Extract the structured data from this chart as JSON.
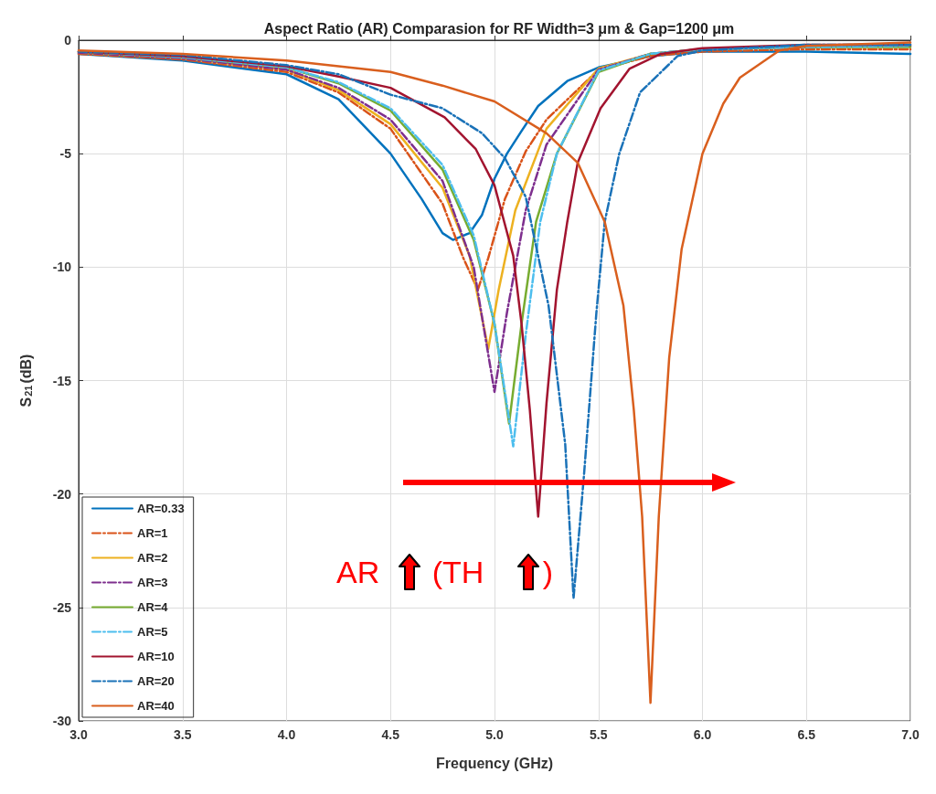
{
  "chart_data": {
    "type": "line",
    "title": "Aspect Ratio (AR) Comparasion for RF Width=3 μm & Gap=1200 μm",
    "xlabel": "Frequency (GHz)",
    "ylabel": "S$_{21}$(dB)",
    "xlim": [
      3,
      7
    ],
    "xticks": [
      {
        "value": 3,
        "label": "3.0"
      },
      3.5,
      {
        "value": 4,
        "label": "4.0"
      },
      4.5,
      {
        "value": 5,
        "label": "5.0"
      },
      5.5,
      {
        "value": 6,
        "label": "6.0"
      },
      6.5,
      {
        "value": 7,
        "label": "7.0"
      }
    ],
    "ylim": [
      -30,
      0
    ],
    "yticks": [
      -30,
      -25,
      -20,
      -15,
      -10,
      -5,
      0
    ],
    "grid": true,
    "legend": "bottom left",
    "marker": "none",
    "annotations": [
      "AR",
      "(TH",
      ")"
    ],
    "series": [
      {
        "name": "AR=0.33",
        "color": "#0072bd",
        "line_style": "solid",
        "x": [
          3.0,
          3.5,
          4.0,
          4.25,
          4.5,
          4.65,
          4.75,
          4.8,
          4.88,
          4.94,
          5.0,
          5.06,
          5.13,
          5.21,
          5.35,
          5.5,
          5.75,
          6.0,
          6.5,
          7.0
        ],
        "values": [
          -0.6,
          -0.9,
          -1.5,
          -2.6,
          -5.0,
          -7.0,
          -8.5,
          -8.8,
          -8.5,
          -7.7,
          -6.1,
          -5.0,
          -4.0,
          -2.9,
          -1.8,
          -1.2,
          -0.7,
          -0.5,
          -0.5,
          -0.6
        ]
      },
      {
        "name": "AR=1",
        "color": "#d95319",
        "line_style": "dashed",
        "x": [
          3.0,
          3.5,
          4.0,
          4.25,
          4.5,
          4.75,
          4.85,
          4.92,
          4.97,
          5.05,
          5.15,
          5.25,
          5.5,
          5.75,
          6.0,
          6.5,
          7.0
        ],
        "values": [
          -0.6,
          -0.85,
          -1.4,
          -2.3,
          -3.9,
          -7.2,
          -9.6,
          -11.0,
          -9.6,
          -7.0,
          -4.9,
          -3.5,
          -1.3,
          -0.7,
          -0.5,
          -0.4,
          -0.4
        ]
      },
      {
        "name": "AR=2",
        "color": "#edb120",
        "line_style": "solid",
        "x": [
          3.0,
          3.5,
          4.0,
          4.25,
          4.5,
          4.75,
          4.88,
          4.97,
          5.02,
          5.1,
          5.25,
          5.5,
          5.75,
          6.0
        ],
        "values": [
          -0.55,
          -0.8,
          -1.3,
          -2.2,
          -3.7,
          -6.5,
          -9.5,
          -13.6,
          -11.0,
          -7.5,
          -3.9,
          -1.25,
          -0.6,
          -0.4
        ]
      },
      {
        "name": "AR=3",
        "color": "#7e2f8e",
        "line_style": "dashed",
        "x": [
          3.0,
          3.5,
          4.0,
          4.25,
          4.5,
          4.75,
          4.9,
          5.0,
          5.06,
          5.15,
          5.25,
          5.5,
          5.75,
          6.0,
          6.5,
          7.0
        ],
        "values": [
          -0.55,
          -0.8,
          -1.3,
          -2.1,
          -3.5,
          -6.2,
          -10.0,
          -15.5,
          -12.0,
          -7.5,
          -4.6,
          -1.3,
          -0.6,
          -0.4,
          -0.3,
          -0.25
        ]
      },
      {
        "name": "AR=4",
        "color": "#77ac30",
        "line_style": "solid",
        "x": [
          3.0,
          3.5,
          4.0,
          4.25,
          4.5,
          4.75,
          4.9,
          5.0,
          5.07,
          5.13,
          5.2,
          5.3,
          5.5,
          5.75,
          6.0,
          6.5,
          7.0
        ],
        "values": [
          -0.5,
          -0.75,
          -1.2,
          -1.9,
          -3.1,
          -5.7,
          -8.8,
          -12.5,
          -16.9,
          -12.5,
          -8.0,
          -5.0,
          -1.4,
          -0.6,
          -0.4,
          -0.3,
          -0.3
        ]
      },
      {
        "name": "AR=5",
        "color": "#4dbeee",
        "line_style": "dashed",
        "x": [
          3.0,
          3.5,
          4.0,
          4.25,
          4.5,
          4.75,
          4.9,
          5.0,
          5.09,
          5.15,
          5.22,
          5.3,
          5.5,
          5.75,
          6.0,
          6.5,
          7.0
        ],
        "values": [
          -0.5,
          -0.75,
          -1.2,
          -1.85,
          -3.0,
          -5.5,
          -8.6,
          -12.5,
          -17.9,
          -13.0,
          -8.0,
          -5.0,
          -1.35,
          -0.6,
          -0.4,
          -0.3,
          -0.25
        ]
      },
      {
        "name": "AR=10",
        "color": "#a2142f",
        "line_style": "solid",
        "x": [
          3.0,
          3.5,
          4.0,
          4.25,
          4.5,
          4.76,
          4.91,
          5.0,
          5.09,
          5.13,
          5.17,
          5.21,
          5.25,
          5.3,
          5.35,
          5.4,
          5.51,
          5.65,
          5.8,
          6.0,
          6.5,
          7.0
        ],
        "values": [
          -0.5,
          -0.7,
          -1.15,
          -1.6,
          -2.1,
          -3.4,
          -4.8,
          -6.4,
          -9.5,
          -12.5,
          -16.3,
          -21.0,
          -16.0,
          -11.0,
          -8.0,
          -5.4,
          -3.0,
          -1.25,
          -0.6,
          -0.35,
          -0.2,
          -0.2
        ]
      },
      {
        "name": "AR=20",
        "color": "#1a72b8",
        "line_style": "dashed",
        "x": [
          3.0,
          3.5,
          4.0,
          4.25,
          4.5,
          4.75,
          4.94,
          5.05,
          5.15,
          5.26,
          5.34,
          5.38,
          5.43,
          5.49,
          5.53,
          5.6,
          5.7,
          5.88,
          6.0,
          6.5,
          7.0
        ],
        "values": [
          -0.5,
          -0.65,
          -1.1,
          -1.5,
          -2.4,
          -3.0,
          -4.1,
          -5.2,
          -6.9,
          -11.7,
          -17.8,
          -24.6,
          -19.2,
          -12.0,
          -8.0,
          -5.0,
          -2.3,
          -0.7,
          -0.45,
          -0.2,
          -0.2
        ]
      },
      {
        "name": "AR=40",
        "color": "#d95f1e",
        "line_style": "solid",
        "x": [
          3.0,
          3.5,
          4.0,
          4.5,
          4.75,
          5.0,
          5.25,
          5.4,
          5.53,
          5.62,
          5.67,
          5.71,
          5.75,
          5.79,
          5.84,
          5.9,
          6.0,
          6.1,
          6.18,
          6.37,
          6.5,
          7.0
        ],
        "values": [
          -0.45,
          -0.6,
          -0.9,
          -1.4,
          -2.0,
          -2.7,
          -4.1,
          -5.4,
          -8.0,
          -11.7,
          -16.3,
          -21.0,
          -29.2,
          -21.0,
          -14.0,
          -9.2,
          -5.0,
          -2.8,
          -1.65,
          -0.45,
          -0.25,
          -0.1
        ]
      }
    ]
  }
}
